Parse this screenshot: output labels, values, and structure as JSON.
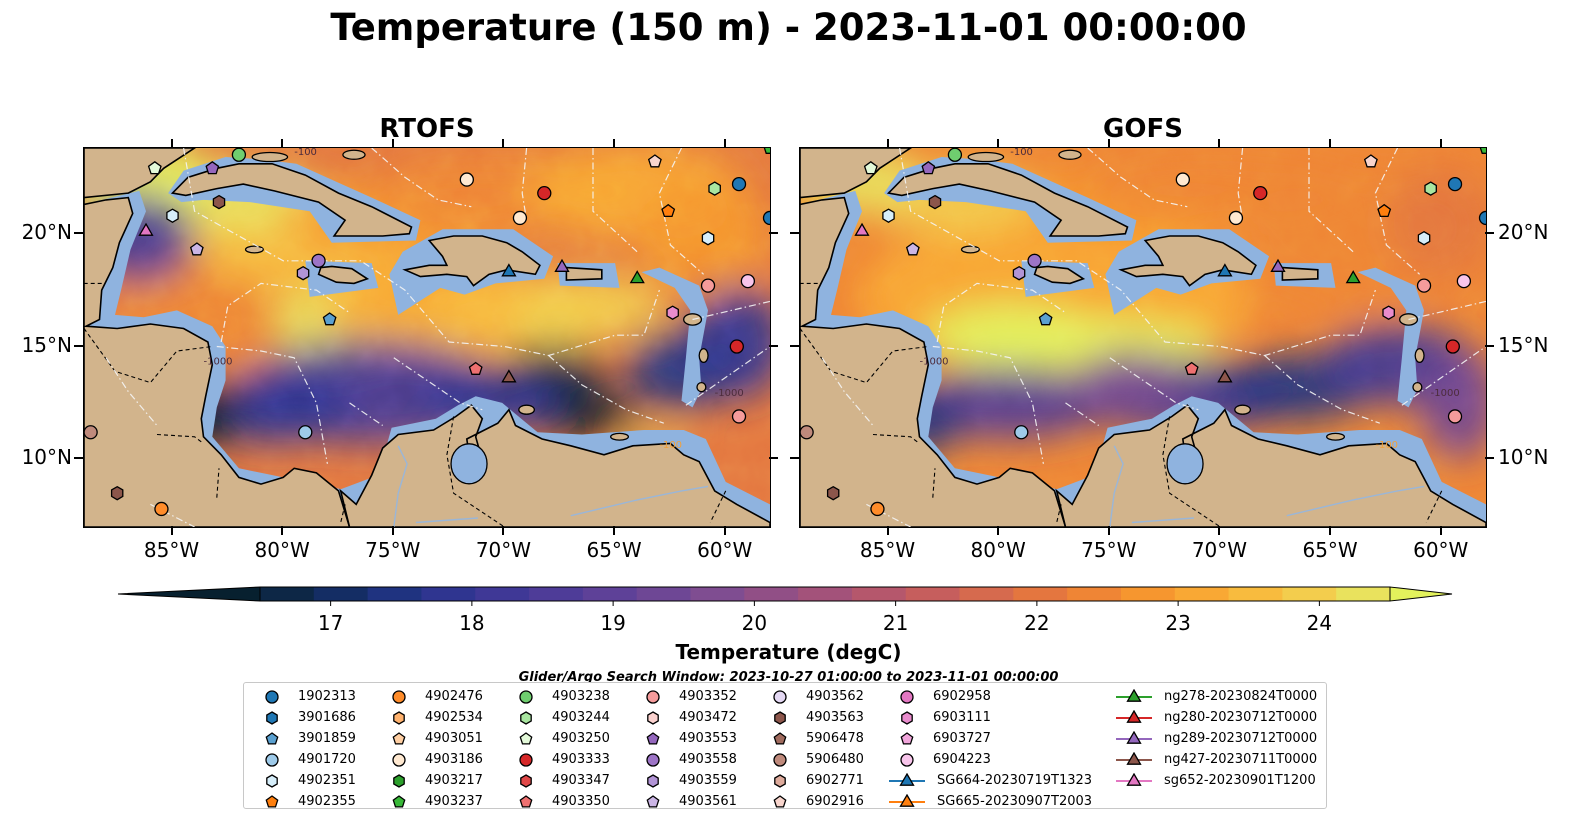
{
  "title": "Temperature (150 m) - 2023-11-01 00:00:00",
  "panels": [
    {
      "title": "RTOFS"
    },
    {
      "title": "GOFS"
    }
  ],
  "lon_ticks": [
    "85°W",
    "80°W",
    "75°W",
    "70°W",
    "65°W",
    "60°W"
  ],
  "lat_ticks": [
    "20°N",
    "15°N",
    "10°N"
  ],
  "colorbar": {
    "label": "Temperature (degC)",
    "tick_labels": [
      "17",
      "18",
      "19",
      "20",
      "21",
      "22",
      "23",
      "24"
    ],
    "min": 16.5,
    "max": 24.5,
    "colors": [
      "#07202f",
      "#0d2746",
      "#142d64",
      "#1f3380",
      "#2f3590",
      "#3f3896",
      "#4e3c98",
      "#5e4198",
      "#6e4795",
      "#7f4d91",
      "#914f86",
      "#a3527a",
      "#b5576c",
      "#c65e5d",
      "#d66a4e",
      "#e4763f",
      "#ef8535",
      "#f6962f",
      "#f9a834",
      "#f8bb3e",
      "#f3cd4d",
      "#e9e25d",
      "#e3f25c"
    ],
    "extend": "both"
  },
  "contour_labels": [
    "-100",
    "-1000"
  ],
  "search_window": "Glider/Argo Search Window: 2023-10-27 01:00:00 to 2023-11-01 00:00:00",
  "legend": [
    {
      "label": "1902313",
      "marker": "circle",
      "color": "#1f77b4"
    },
    {
      "label": "3901686",
      "marker": "hexagon",
      "color": "#1f77b4"
    },
    {
      "label": "3901859",
      "marker": "pentagon",
      "color": "#5aa0d0"
    },
    {
      "label": "4901720",
      "marker": "circle",
      "color": "#9ecae9"
    },
    {
      "label": "4902351",
      "marker": "hexagon",
      "color": "#d6eefa"
    },
    {
      "label": "4902355",
      "marker": "pentagon",
      "color": "#ff7f0e"
    },
    {
      "label": "4902476",
      "marker": "circle",
      "color": "#ff8c2a"
    },
    {
      "label": "4902534",
      "marker": "hexagon",
      "color": "#ffb26e"
    },
    {
      "label": "4903051",
      "marker": "pentagon",
      "color": "#ffcfa3"
    },
    {
      "label": "4903186",
      "marker": "circle",
      "color": "#ffe9d1"
    },
    {
      "label": "4903217",
      "marker": "hexagon",
      "color": "#2ca02c"
    },
    {
      "label": "4903237",
      "marker": "pentagon",
      "color": "#38b838"
    },
    {
      "label": "4903238",
      "marker": "circle",
      "color": "#6fce6f"
    },
    {
      "label": "4903244",
      "marker": "hexagon",
      "color": "#a9e6a0"
    },
    {
      "label": "4903250",
      "marker": "pentagon",
      "color": "#e3f9d9"
    },
    {
      "label": "4903333",
      "marker": "circle",
      "color": "#d62728"
    },
    {
      "label": "4903347",
      "marker": "hexagon",
      "color": "#e04848"
    },
    {
      "label": "4903350",
      "marker": "pentagon",
      "color": "#ee7070"
    },
    {
      "label": "4903352",
      "marker": "circle",
      "color": "#f59b9b"
    },
    {
      "label": "4903472",
      "marker": "hexagon",
      "color": "#fbd2cf"
    },
    {
      "label": "4903553",
      "marker": "pentagon",
      "color": "#9467bd"
    },
    {
      "label": "4903558",
      "marker": "circle",
      "color": "#9d74c6"
    },
    {
      "label": "4903559",
      "marker": "hexagon",
      "color": "#b294d6"
    },
    {
      "label": "4903561",
      "marker": "pentagon",
      "color": "#cbb5e5"
    },
    {
      "label": "4903562",
      "marker": "circle",
      "color": "#e4d8f3"
    },
    {
      "label": "4903563",
      "marker": "hexagon",
      "color": "#8c564b"
    },
    {
      "label": "5906478",
      "marker": "pentagon",
      "color": "#a06b5e"
    },
    {
      "label": "5906480",
      "marker": "circle",
      "color": "#bf8a7c"
    },
    {
      "label": "6902771",
      "marker": "hexagon",
      "color": "#deab9c"
    },
    {
      "label": "6902916",
      "marker": "pentagon",
      "color": "#f8d5cd"
    },
    {
      "label": "6902958",
      "marker": "circle",
      "color": "#e377c2"
    },
    {
      "label": "6903111",
      "marker": "hexagon",
      "color": "#e98ccd"
    },
    {
      "label": "6903727",
      "marker": "pentagon",
      "color": "#f2a6dc"
    },
    {
      "label": "6904223",
      "marker": "circle",
      "color": "#f8c5eb"
    },
    {
      "label": "SG664-20230719T1323",
      "marker": "triangle",
      "color": "#1f77b4",
      "line": true
    },
    {
      "label": "SG665-20230907T2003",
      "marker": "triangle",
      "color": "#ff7f0e",
      "line": true
    },
    {
      "label": "ng278-20230824T0000",
      "marker": "triangle",
      "color": "#2ca02c",
      "line": true
    },
    {
      "label": "ng280-20230712T0000",
      "marker": "triangle",
      "color": "#d62728",
      "line": true
    },
    {
      "label": "ng289-20230712T0000",
      "marker": "triangle",
      "color": "#9467bd",
      "line": true
    },
    {
      "label": "ng427-20230711T0000",
      "marker": "triangle",
      "color": "#8c564b",
      "line": true
    },
    {
      "label": "sg652-20230901T1200",
      "marker": "triangle",
      "color": "#e377c2",
      "line": true
    }
  ]
}
